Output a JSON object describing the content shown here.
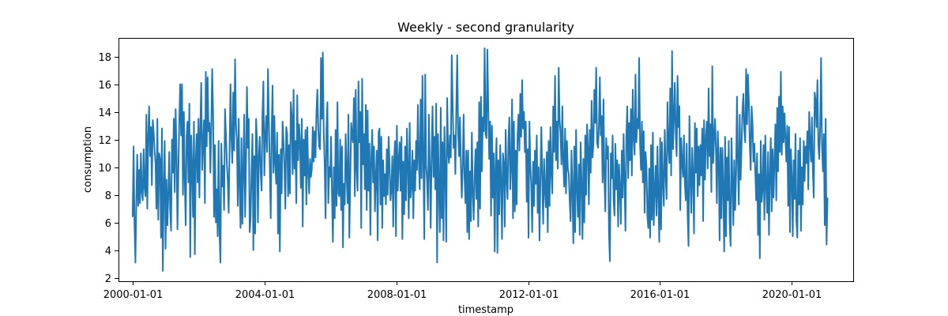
{
  "chart_data": {
    "type": "line",
    "title": "Weekly - second granularity",
    "xlabel": "timestamp",
    "ylabel": "consumption",
    "x_range": [
      "1999-07-28",
      "2021-11-12"
    ],
    "ylim": [
      1.75,
      19.35
    ],
    "x_ticks": [
      "2000-01-01",
      "2004-01-01",
      "2008-01-01",
      "2012-01-01",
      "2016-01-01",
      "2020-01-01"
    ],
    "y_ticks": [
      2,
      4,
      6,
      8,
      10,
      12,
      14,
      16,
      18
    ],
    "grid": false,
    "legend": "none",
    "series": [
      {
        "color": "#1f77b4",
        "x_start": "2000-01-01",
        "x_end": "2021-01-31",
        "sampling": "weekly",
        "values": [
          6.4,
          11.5,
          5.9,
          3.1,
          7.6,
          10.9,
          7.2,
          9.8,
          7.4,
          11.0,
          8.2,
          7.6,
          11.3,
          8.5,
          7.9,
          13.8,
          7.0,
          12.1,
          14.4,
          10.8,
          12.9,
          8.7,
          13.4,
          12.5,
          11.2,
          10.3,
          7.0,
          13.5,
          6.2,
          11.0,
          10.6,
          4.9,
          12.8,
          2.5,
          8.4,
          11.9,
          4.1,
          9.1,
          5.8,
          8.0,
          11.1,
          7.0,
          5.4,
          12.0,
          9.6,
          13.5,
          8.2,
          14.2,
          11.1,
          5.5,
          9.7,
          13.4,
          16.0,
          12.3,
          16.0,
          8.0,
          14.0,
          9.1,
          5.8,
          12.2,
          13.3,
          8.9,
          14.6,
          3.5,
          12.3,
          10.1,
          6.4,
          13.3,
          3.7,
          10.5,
          12.4,
          8.9,
          13.5,
          7.8,
          12.8,
          16.1,
          9.8,
          11.8,
          13.4,
          7.4,
          16.9,
          11.5,
          16.5,
          12.6,
          13.2,
          9.6,
          13.0,
          17.1,
          13.8,
          6.4,
          11.6,
          6.0,
          8.4,
          5.0,
          11.9,
          5.3,
          3.1,
          11.7,
          8.6,
          10.1,
          6.9,
          14.2,
          12.4,
          10.3,
          9.1,
          6.7,
          11.3,
          16.0,
          12.1,
          10.3,
          15.4,
          11.2,
          17.8,
          13.1,
          12.0,
          7.2,
          13.5,
          8.6,
          5.6,
          12.1,
          5.9,
          9.8,
          13.8,
          6.4,
          10.4,
          15.8,
          11.4,
          13.5,
          5.3,
          6.4,
          9.6,
          12.4,
          4.0,
          10.8,
          5.2,
          13.5,
          11.9,
          6.0,
          10.8,
          12.2,
          9.6,
          8.3,
          13.9,
          16.2,
          9.4,
          12.1,
          13.7,
          11.1,
          17.1,
          13.4,
          10.1,
          6.3,
          12.4,
          15.9,
          9.6,
          13.7,
          10.2,
          8.8,
          12.5,
          5.2,
          10.9,
          3.9,
          11.3,
          8.1,
          13.3,
          11.8,
          10.1,
          7.0,
          12.9,
          12.4,
          7.9,
          11.6,
          8.1,
          14.7,
          13.7,
          9.5,
          15.6,
          9.9,
          11.9,
          7.4,
          15.2,
          10.5,
          13.1,
          11.8,
          8.5,
          13.5,
          5.7,
          12.0,
          9.4,
          12.7,
          7.3,
          12.9,
          9.8,
          8.1,
          10.6,
          9.3,
          9.9,
          12.9,
          10.4,
          12.6,
          10.7,
          13.9,
          15.6,
          12.8,
          11.5,
          11.3,
          17.9,
          13.5,
          18.3,
          12.5,
          10.3,
          6.3,
          12.8,
          14.7,
          7.4,
          10.0,
          9.3,
          12.2,
          8.1,
          4.6,
          10.0,
          6.3,
          12.7,
          7.2,
          14.7,
          8.1,
          7.9,
          12.0,
          6.9,
          11.5,
          4.2,
          8.8,
          7.3,
          12.4,
          9.6,
          7.4,
          13.8,
          4.9,
          9.0,
          13.2,
          12.3,
          11.8,
          15.0,
          7.9,
          15.6,
          9.8,
          8.3,
          16.2,
          11.8,
          14.0,
          5.6,
          16.4,
          10.2,
          12.4,
          8.4,
          14.5,
          6.9,
          14.1,
          8.3,
          11.7,
          5.1,
          10.5,
          12.7,
          8.9,
          11.5,
          6.8,
          9.3,
          11.2,
          4.7,
          12.5,
          12.8,
          7.3,
          12.2,
          5.6,
          10.5,
          7.9,
          9.5,
          7.3,
          11.3,
          8.0,
          12.2,
          10.1,
          7.6,
          8.4,
          10.8,
          5.7,
          10.5,
          11.9,
          5.0,
          13.0,
          8.3,
          10.4,
          11.8,
          8.3,
          12.2,
          4.8,
          10.4,
          6.6,
          11.5,
          7.6,
          12.8,
          10.0,
          6.3,
          13.2,
          7.8,
          8.6,
          11.2,
          6.3,
          10.5,
          8.3,
          11.9,
          9.8,
          14.5,
          10.5,
          8.4,
          14.9,
          9.2,
          16.6,
          10.3,
          4.8,
          16.7,
          10.1,
          9.1,
          6.9,
          13.8,
          10.1,
          5.6,
          11.0,
          14.4,
          9.3,
          12.2,
          8.4,
          14.6,
          3.1,
          12.4,
          8.5,
          5.3,
          14.3,
          6.3,
          11.8,
          4.7,
          12.9,
          9.8,
          4.6,
          15.0,
          11.2,
          10.3,
          12.3,
          10.7,
          18.1,
          14.7,
          11.4,
          12.3,
          9.5,
          14.3,
          18.1,
          12.5,
          10.8,
          13.6,
          10.1,
          7.8,
          10.1,
          13.8,
          9.3,
          7.4,
          11.2,
          5.3,
          11.2,
          4.8,
          9.7,
          6.1,
          12.5,
          8.3,
          6.2,
          9.2,
          11.3,
          7.7,
          11.8,
          5.7,
          14.7,
          7.0,
          15.1,
          9.7,
          13.6,
          12.6,
          18.6,
          12.4,
          12.1,
          18.5,
          14.2,
          10.6,
          13.3,
          6.5,
          13.0,
          7.8,
          11.0,
          3.9,
          9.9,
          12.1,
          3.8,
          10.5,
          6.6,
          11.6,
          9.1,
          4.8,
          11.0,
          10.3,
          5.7,
          12.7,
          9.2,
          7.7,
          11.9,
          13.6,
          8.4,
          10.0,
          14.9,
          6.3,
          13.3,
          6.8,
          11.2,
          7.3,
          12.3,
          13.8,
          11.2,
          15.3,
          12.2,
          16.3,
          12.8,
          14.0,
          11.1,
          13.3,
          7.5,
          11.3,
          4.9,
          13.3,
          10.1,
          8.7,
          5.3,
          10.4,
          7.2,
          11.2,
          8.8,
          12.3,
          6.7,
          10.0,
          4.7,
          9.1,
          12.9,
          9.3,
          5.9,
          10.6,
          8.3,
          7.1,
          11.1,
          5.3,
          11.9,
          7.2,
          12.9,
          9.6,
          8.1,
          14.4,
          11.1,
          16.6,
          10.5,
          13.3,
          9.9,
          17.2,
          13.4,
          12.5,
          10.2,
          14.4,
          10.4,
          8.6,
          12.8,
          8.1,
          11.9,
          9.9,
          9.5,
          7.6,
          6.1,
          11.2,
          8.3,
          4.5,
          11.5,
          5.3,
          12.7,
          8.5,
          6.4,
          10.2,
          5.1,
          11.8,
          8.8,
          4.8,
          10.6,
          6.0,
          12.3,
          8.0,
          13.1,
          11.4,
          7.3,
          12.7,
          9.6,
          14.8,
          10.7,
          11.7,
          15.6,
          13.2,
          17.2,
          11.8,
          11.4,
          13.0,
          16.5,
          12.3,
          13.7,
          8.9,
          14.9,
          9.2,
          6.8,
          12.1,
          10.6,
          11.5,
          5.3,
          3.2,
          11.0,
          9.2,
          12.3,
          7.7,
          6.5,
          11.7,
          8.4,
          10.5,
          5.7,
          10.2,
          8.5,
          5.9,
          11.2,
          7.8,
          12.4,
          9.0,
          5.4,
          12.2,
          14.4,
          9.2,
          13.2,
          10.5,
          14.2,
          9.4,
          15.6,
          12.2,
          10.9,
          16.7,
          11.8,
          13.5,
          12.8,
          17.9,
          11.6,
          9.8,
          13.3,
          8.9,
          12.6,
          6.7,
          11.1,
          10.1,
          6.5,
          5.6,
          9.9,
          4.9,
          11.6,
          6.2,
          12.5,
          5.8,
          8.3,
          10.1,
          6.5,
          11.5,
          8.0,
          4.6,
          12.1,
          5.5,
          11.8,
          8.9,
          7.2,
          12.7,
          9.6,
          7.7,
          14.7,
          11.5,
          10.3,
          15.7,
          9.4,
          18.4,
          11.3,
          13.5,
          16.1,
          12.5,
          10.8,
          16.6,
          12.9,
          14.4,
          6.9,
          12.1,
          10.3,
          9.3,
          12.3,
          8.8,
          7.6,
          11.7,
          6.6,
          4.3,
          13.7,
          9.3,
          6.7,
          11.4,
          9.4,
          5.2,
          13.2,
          9.6,
          12.8,
          7.9,
          11.5,
          8.7,
          11.6,
          9.4,
          12.8,
          6.1,
          13.4,
          9.1,
          12.1,
          13.3,
          9.9,
          15.7,
          10.8,
          13.1,
          8.2,
          17.3,
          10.3,
          12.1,
          13.5,
          11.3,
          7.4,
          12.6,
          10.8,
          4.7,
          11.4,
          6.3,
          11.4,
          8.5,
          3.9,
          12.2,
          5.0,
          10.7,
          7.6,
          11.9,
          6.0,
          4.3,
          12.1,
          9.1,
          5.8,
          10.5,
          6.9,
          9.4,
          15.1,
          10.5,
          7.3,
          13.8,
          9.1,
          11.5,
          14.1,
          15.3,
          12.7,
          11.8,
          17.1,
          13.1,
          16.7,
          14.7,
          11.7,
          9.8,
          14.4,
          13.2,
          10.4,
          11.7,
          9.7,
          7.6,
          11.0,
          5.1,
          9.5,
          3.4,
          11.9,
          7.5,
          8.4,
          11.6,
          6.2,
          12.3,
          8.6,
          6.7,
          11.1,
          5.1,
          9.4,
          12.1,
          6.8,
          11.3,
          7.8,
          10.4,
          13.1,
          7.6,
          14.3,
          9.7,
          15.1,
          11.1,
          16.9,
          10.9,
          14.4,
          11.8,
          13.9,
          12.1,
          10.4,
          13.0,
          7.2,
          12.9,
          5.3,
          11.3,
          9.3,
          5.0,
          10.5,
          7.7,
          12.4,
          6.1,
          4.9,
          11.2,
          7.3,
          12.1,
          5.4,
          10.0,
          7.3,
          11.9,
          9.0,
          11.5,
          10.3,
          12.6,
          8.4,
          14.0,
          11.8,
          10.4,
          13.6,
          9.7,
          7.8,
          15.4,
          14.8,
          12.9,
          16.3,
          11.6,
          10.6,
          13.0,
          17.9,
          11.6,
          9.7,
          12.4,
          5.8,
          13.5,
          4.4,
          7.8
        ]
      }
    ]
  }
}
